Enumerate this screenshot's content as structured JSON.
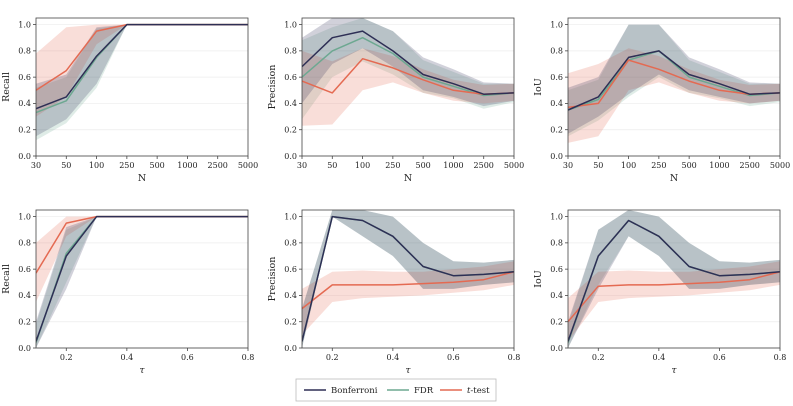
{
  "colors": {
    "Bonferroni": "#2e2f55",
    "FDR": "#6da891",
    "t-test": "#e46a52",
    "grid": "#ececec",
    "axis": "#444444"
  },
  "legend": {
    "placement": "bottom-center",
    "items": [
      "Bonferroni",
      "FDR",
      "t-test"
    ],
    "t_test_italic": "t",
    "t_test_rest": "-test"
  },
  "chart_data": [
    {
      "type": "line",
      "ylabel": "Recall",
      "xlabel": "N",
      "xscale": "categorical",
      "categories": [
        "30",
        "50",
        "100",
        "250",
        "500",
        "1000",
        "2500",
        "5000"
      ],
      "ylim": [
        0,
        1.05
      ],
      "yticks": [
        "0.0",
        "0.2",
        "0.4",
        "0.6",
        "0.8",
        "1.0"
      ],
      "grid": true,
      "series": [
        {
          "name": "Bonferroni",
          "values": [
            0.36,
            0.45,
            0.76,
            1.0,
            1.0,
            1.0,
            1.0,
            1.0
          ],
          "lower": [
            0.15,
            0.28,
            0.55,
            1.0,
            1.0,
            1.0,
            1.0,
            1.0
          ],
          "upper": [
            0.55,
            0.62,
            0.98,
            1.0,
            1.0,
            1.0,
            1.0,
            1.0
          ]
        },
        {
          "name": "FDR",
          "values": [
            0.33,
            0.42,
            0.75,
            1.0,
            1.0,
            1.0,
            1.0,
            1.0
          ],
          "lower": [
            0.12,
            0.25,
            0.52,
            1.0,
            1.0,
            1.0,
            1.0,
            1.0
          ],
          "upper": [
            0.52,
            0.6,
            0.97,
            1.0,
            1.0,
            1.0,
            1.0,
            1.0
          ]
        },
        {
          "name": "t-test",
          "values": [
            0.5,
            0.65,
            0.95,
            1.0,
            1.0,
            1.0,
            1.0,
            1.0
          ],
          "lower": [
            0.3,
            0.45,
            0.85,
            1.0,
            1.0,
            1.0,
            1.0,
            1.0
          ],
          "upper": [
            0.78,
            0.98,
            1.0,
            1.0,
            1.0,
            1.0,
            1.0,
            1.0
          ]
        }
      ]
    },
    {
      "type": "line",
      "ylabel": "Precision",
      "xlabel": "N",
      "xscale": "categorical",
      "categories": [
        "30",
        "50",
        "100",
        "250",
        "500",
        "1000",
        "2500",
        "5000"
      ],
      "ylim": [
        0,
        1.05
      ],
      "yticks": [
        "0.0",
        "0.2",
        "0.4",
        "0.6",
        "0.8",
        "1.0"
      ],
      "grid": true,
      "series": [
        {
          "name": "Bonferroni",
          "values": [
            0.68,
            0.9,
            0.95,
            0.8,
            0.62,
            0.55,
            0.47,
            0.48
          ],
          "lower": [
            0.4,
            0.7,
            0.82,
            0.68,
            0.5,
            0.45,
            0.38,
            0.42
          ],
          "upper": [
            0.9,
            1.05,
            1.05,
            0.95,
            0.75,
            0.66,
            0.56,
            0.55
          ]
        },
        {
          "name": "FDR",
          "values": [
            0.6,
            0.8,
            0.9,
            0.78,
            0.6,
            0.53,
            0.46,
            0.48
          ],
          "lower": [
            0.28,
            0.6,
            0.72,
            0.62,
            0.48,
            0.44,
            0.36,
            0.41
          ],
          "upper": [
            0.88,
            0.98,
            1.05,
            0.95,
            0.73,
            0.64,
            0.55,
            0.55
          ]
        },
        {
          "name": "t-test",
          "values": [
            0.57,
            0.48,
            0.74,
            0.67,
            0.58,
            0.5,
            0.47,
            0.48
          ],
          "lower": [
            0.23,
            0.24,
            0.5,
            0.56,
            0.48,
            0.42,
            0.4,
            0.42
          ],
          "upper": [
            0.8,
            0.72,
            0.82,
            0.76,
            0.66,
            0.58,
            0.54,
            0.55
          ]
        }
      ]
    },
    {
      "type": "line",
      "ylabel": "IoU",
      "xlabel": "N",
      "xscale": "categorical",
      "categories": [
        "30",
        "50",
        "100",
        "250",
        "500",
        "1000",
        "2500",
        "5000"
      ],
      "ylim": [
        0,
        1.05
      ],
      "yticks": [
        "0.0",
        "0.2",
        "0.4",
        "0.6",
        "0.8",
        "1.0"
      ],
      "grid": true,
      "series": [
        {
          "name": "Bonferroni",
          "values": [
            0.35,
            0.45,
            0.75,
            0.8,
            0.62,
            0.55,
            0.47,
            0.48
          ],
          "lower": [
            0.17,
            0.3,
            0.47,
            0.62,
            0.5,
            0.45,
            0.4,
            0.42
          ],
          "upper": [
            0.52,
            0.6,
            1.0,
            1.0,
            0.75,
            0.66,
            0.56,
            0.55
          ]
        },
        {
          "name": "FDR",
          "values": [
            0.35,
            0.43,
            0.73,
            0.8,
            0.6,
            0.53,
            0.46,
            0.48
          ],
          "lower": [
            0.15,
            0.27,
            0.45,
            0.6,
            0.48,
            0.44,
            0.38,
            0.41
          ],
          "upper": [
            0.5,
            0.58,
            1.0,
            1.0,
            0.73,
            0.64,
            0.55,
            0.55
          ]
        },
        {
          "name": "t-test",
          "values": [
            0.37,
            0.4,
            0.73,
            0.66,
            0.57,
            0.5,
            0.47,
            0.48
          ],
          "lower": [
            0.1,
            0.15,
            0.5,
            0.56,
            0.48,
            0.42,
            0.4,
            0.42
          ],
          "upper": [
            0.63,
            0.7,
            0.82,
            0.76,
            0.66,
            0.58,
            0.54,
            0.55
          ]
        }
      ]
    },
    {
      "type": "line",
      "ylabel": "Recall",
      "xlabel": "τ",
      "xscale": "linear",
      "x": [
        0.1,
        0.2,
        0.3,
        0.4,
        0.5,
        0.6,
        0.7,
        0.8
      ],
      "xlim": [
        0.1,
        0.8
      ],
      "xticks": [
        0.2,
        0.4,
        0.6,
        0.8
      ],
      "xticklabels": [
        "0.2",
        "0.4",
        "0.6",
        "0.8"
      ],
      "ylim": [
        0,
        1.05
      ],
      "yticks": [
        "0.0",
        "0.2",
        "0.4",
        "0.6",
        "0.8",
        "1.0"
      ],
      "grid": true,
      "series": [
        {
          "name": "Bonferroni",
          "values": [
            0.05,
            0.7,
            1.0,
            1.0,
            1.0,
            1.0,
            1.0,
            1.0
          ],
          "lower": [
            0.0,
            0.45,
            1.0,
            1.0,
            1.0,
            1.0,
            1.0,
            1.0
          ],
          "upper": [
            0.2,
            0.92,
            1.0,
            1.0,
            1.0,
            1.0,
            1.0,
            1.0
          ]
        },
        {
          "name": "FDR",
          "values": [
            0.04,
            0.72,
            1.0,
            1.0,
            1.0,
            1.0,
            1.0,
            1.0
          ],
          "lower": [
            0.0,
            0.5,
            1.0,
            1.0,
            1.0,
            1.0,
            1.0,
            1.0
          ],
          "upper": [
            0.18,
            0.9,
            1.0,
            1.0,
            1.0,
            1.0,
            1.0,
            1.0
          ]
        },
        {
          "name": "t-test",
          "values": [
            0.57,
            0.95,
            1.0,
            1.0,
            1.0,
            1.0,
            1.0,
            1.0
          ],
          "lower": [
            0.35,
            0.85,
            1.0,
            1.0,
            1.0,
            1.0,
            1.0,
            1.0
          ],
          "upper": [
            0.8,
            1.0,
            1.0,
            1.0,
            1.0,
            1.0,
            1.0,
            1.0
          ]
        }
      ]
    },
    {
      "type": "line",
      "ylabel": "Precision",
      "xlabel": "τ",
      "xscale": "linear",
      "x": [
        0.1,
        0.2,
        0.3,
        0.4,
        0.5,
        0.6,
        0.7,
        0.8
      ],
      "xlim": [
        0.1,
        0.8
      ],
      "xticks": [
        0.2,
        0.4,
        0.6,
        0.8
      ],
      "xticklabels": [
        "0.2",
        "0.4",
        "0.6",
        "0.8"
      ],
      "ylim": [
        0,
        1.05
      ],
      "yticks": [
        "0.0",
        "0.2",
        "0.4",
        "0.6",
        "0.8",
        "1.0"
      ],
      "grid": true,
      "series": [
        {
          "name": "Bonferroni",
          "values": [
            0.05,
            1.0,
            0.97,
            0.85,
            0.62,
            0.55,
            0.56,
            0.58
          ],
          "lower": [
            0.0,
            1.0,
            0.85,
            0.7,
            0.45,
            0.45,
            0.48,
            0.5
          ],
          "upper": [
            0.3,
            1.05,
            1.05,
            1.0,
            0.8,
            0.66,
            0.65,
            0.67
          ]
        },
        {
          "name": "FDR",
          "values": [
            0.05,
            1.0,
            0.97,
            0.85,
            0.62,
            0.55,
            0.56,
            0.58
          ],
          "lower": [
            0.0,
            1.0,
            0.85,
            0.7,
            0.45,
            0.45,
            0.48,
            0.5
          ],
          "upper": [
            0.3,
            1.05,
            1.05,
            1.0,
            0.8,
            0.66,
            0.65,
            0.67
          ]
        },
        {
          "name": "t-test",
          "values": [
            0.3,
            0.48,
            0.48,
            0.48,
            0.49,
            0.5,
            0.52,
            0.58
          ],
          "lower": [
            0.1,
            0.35,
            0.38,
            0.39,
            0.4,
            0.42,
            0.44,
            0.48
          ],
          "upper": [
            0.45,
            0.58,
            0.59,
            0.58,
            0.58,
            0.6,
            0.62,
            0.66
          ]
        }
      ]
    },
    {
      "type": "line",
      "ylabel": "IoU",
      "xlabel": "τ",
      "xscale": "linear",
      "x": [
        0.1,
        0.2,
        0.3,
        0.4,
        0.5,
        0.6,
        0.7,
        0.8
      ],
      "xlim": [
        0.1,
        0.8
      ],
      "xticks": [
        0.2,
        0.4,
        0.6,
        0.8
      ],
      "xticklabels": [
        "0.2",
        "0.4",
        "0.6",
        "0.8"
      ],
      "ylim": [
        0,
        1.05
      ],
      "yticks": [
        "0.0",
        "0.2",
        "0.4",
        "0.6",
        "0.8",
        "1.0"
      ],
      "grid": true,
      "series": [
        {
          "name": "Bonferroni",
          "values": [
            0.05,
            0.7,
            0.97,
            0.85,
            0.62,
            0.55,
            0.56,
            0.58
          ],
          "lower": [
            0.0,
            0.45,
            0.85,
            0.7,
            0.45,
            0.45,
            0.48,
            0.5
          ],
          "upper": [
            0.2,
            0.9,
            1.05,
            1.0,
            0.8,
            0.66,
            0.65,
            0.67
          ]
        },
        {
          "name": "FDR",
          "values": [
            0.04,
            0.7,
            0.97,
            0.85,
            0.62,
            0.55,
            0.56,
            0.58
          ],
          "lower": [
            0.0,
            0.48,
            0.85,
            0.7,
            0.45,
            0.45,
            0.48,
            0.5
          ],
          "upper": [
            0.18,
            0.9,
            1.05,
            1.0,
            0.8,
            0.66,
            0.65,
            0.67
          ]
        },
        {
          "name": "t-test",
          "values": [
            0.2,
            0.47,
            0.48,
            0.48,
            0.49,
            0.5,
            0.52,
            0.58
          ],
          "lower": [
            0.05,
            0.35,
            0.38,
            0.39,
            0.4,
            0.42,
            0.44,
            0.48
          ],
          "upper": [
            0.38,
            0.58,
            0.59,
            0.58,
            0.58,
            0.6,
            0.62,
            0.66
          ]
        }
      ]
    }
  ]
}
